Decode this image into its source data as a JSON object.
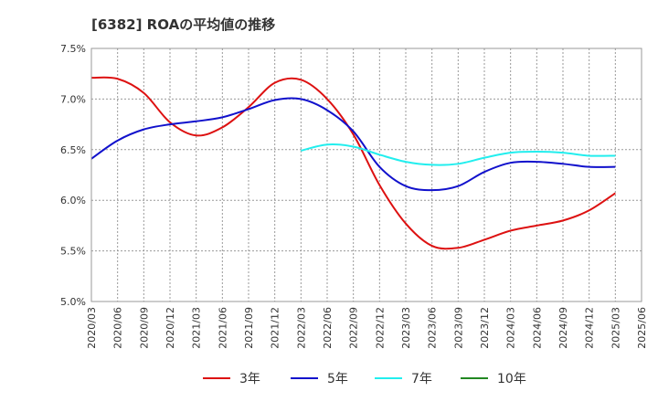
{
  "chart_data": {
    "type": "line",
    "title": "[6382]  ROAの平均値の推移",
    "xlabel": "",
    "ylabel": "",
    "ylim": [
      5.0,
      7.5
    ],
    "yticks": [
      5.0,
      5.5,
      6.0,
      6.5,
      7.0,
      7.5
    ],
    "ytick_labels": [
      "5.0%",
      "5.5%",
      "6.0%",
      "6.5%",
      "7.0%",
      "7.5%"
    ],
    "xlim": [
      "2020/03",
      "2025/06"
    ],
    "xtick_labels": [
      "2020/03",
      "2020/06",
      "2020/09",
      "2020/12",
      "2021/03",
      "2021/06",
      "2021/09",
      "2021/12",
      "2022/03",
      "2022/06",
      "2022/09",
      "2022/12",
      "2023/03",
      "2023/06",
      "2023/09",
      "2023/12",
      "2024/03",
      "2024/06",
      "2024/09",
      "2024/12",
      "2025/03",
      "2025/06"
    ],
    "grid": true,
    "legend_position": "bottom",
    "series": [
      {
        "name": "3年",
        "color": "#dd1111",
        "x": [
          "2020/03",
          "2020/06",
          "2020/09",
          "2020/12",
          "2021/03",
          "2021/06",
          "2021/09",
          "2021/12",
          "2022/03",
          "2022/06",
          "2022/09",
          "2022/12",
          "2023/03",
          "2023/06",
          "2023/09",
          "2023/12",
          "2024/03",
          "2024/06",
          "2024/09",
          "2024/12",
          "2025/03"
        ],
        "values": [
          7.21,
          7.2,
          7.06,
          6.77,
          6.64,
          6.72,
          6.92,
          7.16,
          7.19,
          7.0,
          6.65,
          6.15,
          5.77,
          5.55,
          5.53,
          5.61,
          5.7,
          5.75,
          5.8,
          5.9,
          6.07
        ]
      },
      {
        "name": "5年",
        "color": "#1111cc",
        "x": [
          "2020/03",
          "2020/06",
          "2020/09",
          "2020/12",
          "2021/03",
          "2021/06",
          "2021/09",
          "2021/12",
          "2022/03",
          "2022/06",
          "2022/09",
          "2022/12",
          "2023/03",
          "2023/06",
          "2023/09",
          "2023/12",
          "2024/03",
          "2024/06",
          "2024/09",
          "2024/12",
          "2025/03"
        ],
        "values": [
          6.41,
          6.59,
          6.7,
          6.75,
          6.78,
          6.82,
          6.9,
          6.99,
          7.0,
          6.89,
          6.68,
          6.33,
          6.14,
          6.1,
          6.14,
          6.28,
          6.37,
          6.38,
          6.36,
          6.33,
          6.33
        ]
      },
      {
        "name": "7年",
        "color": "#22eeee",
        "x": [
          "2022/03",
          "2022/06",
          "2022/09",
          "2022/12",
          "2023/03",
          "2023/06",
          "2023/09",
          "2023/12",
          "2024/03",
          "2024/06",
          "2024/09",
          "2024/12",
          "2025/03"
        ],
        "values": [
          6.49,
          6.55,
          6.53,
          6.45,
          6.38,
          6.35,
          6.36,
          6.42,
          6.47,
          6.48,
          6.47,
          6.44,
          6.44
        ]
      },
      {
        "name": "10年",
        "color": "#228822",
        "x": [],
        "values": []
      }
    ]
  }
}
